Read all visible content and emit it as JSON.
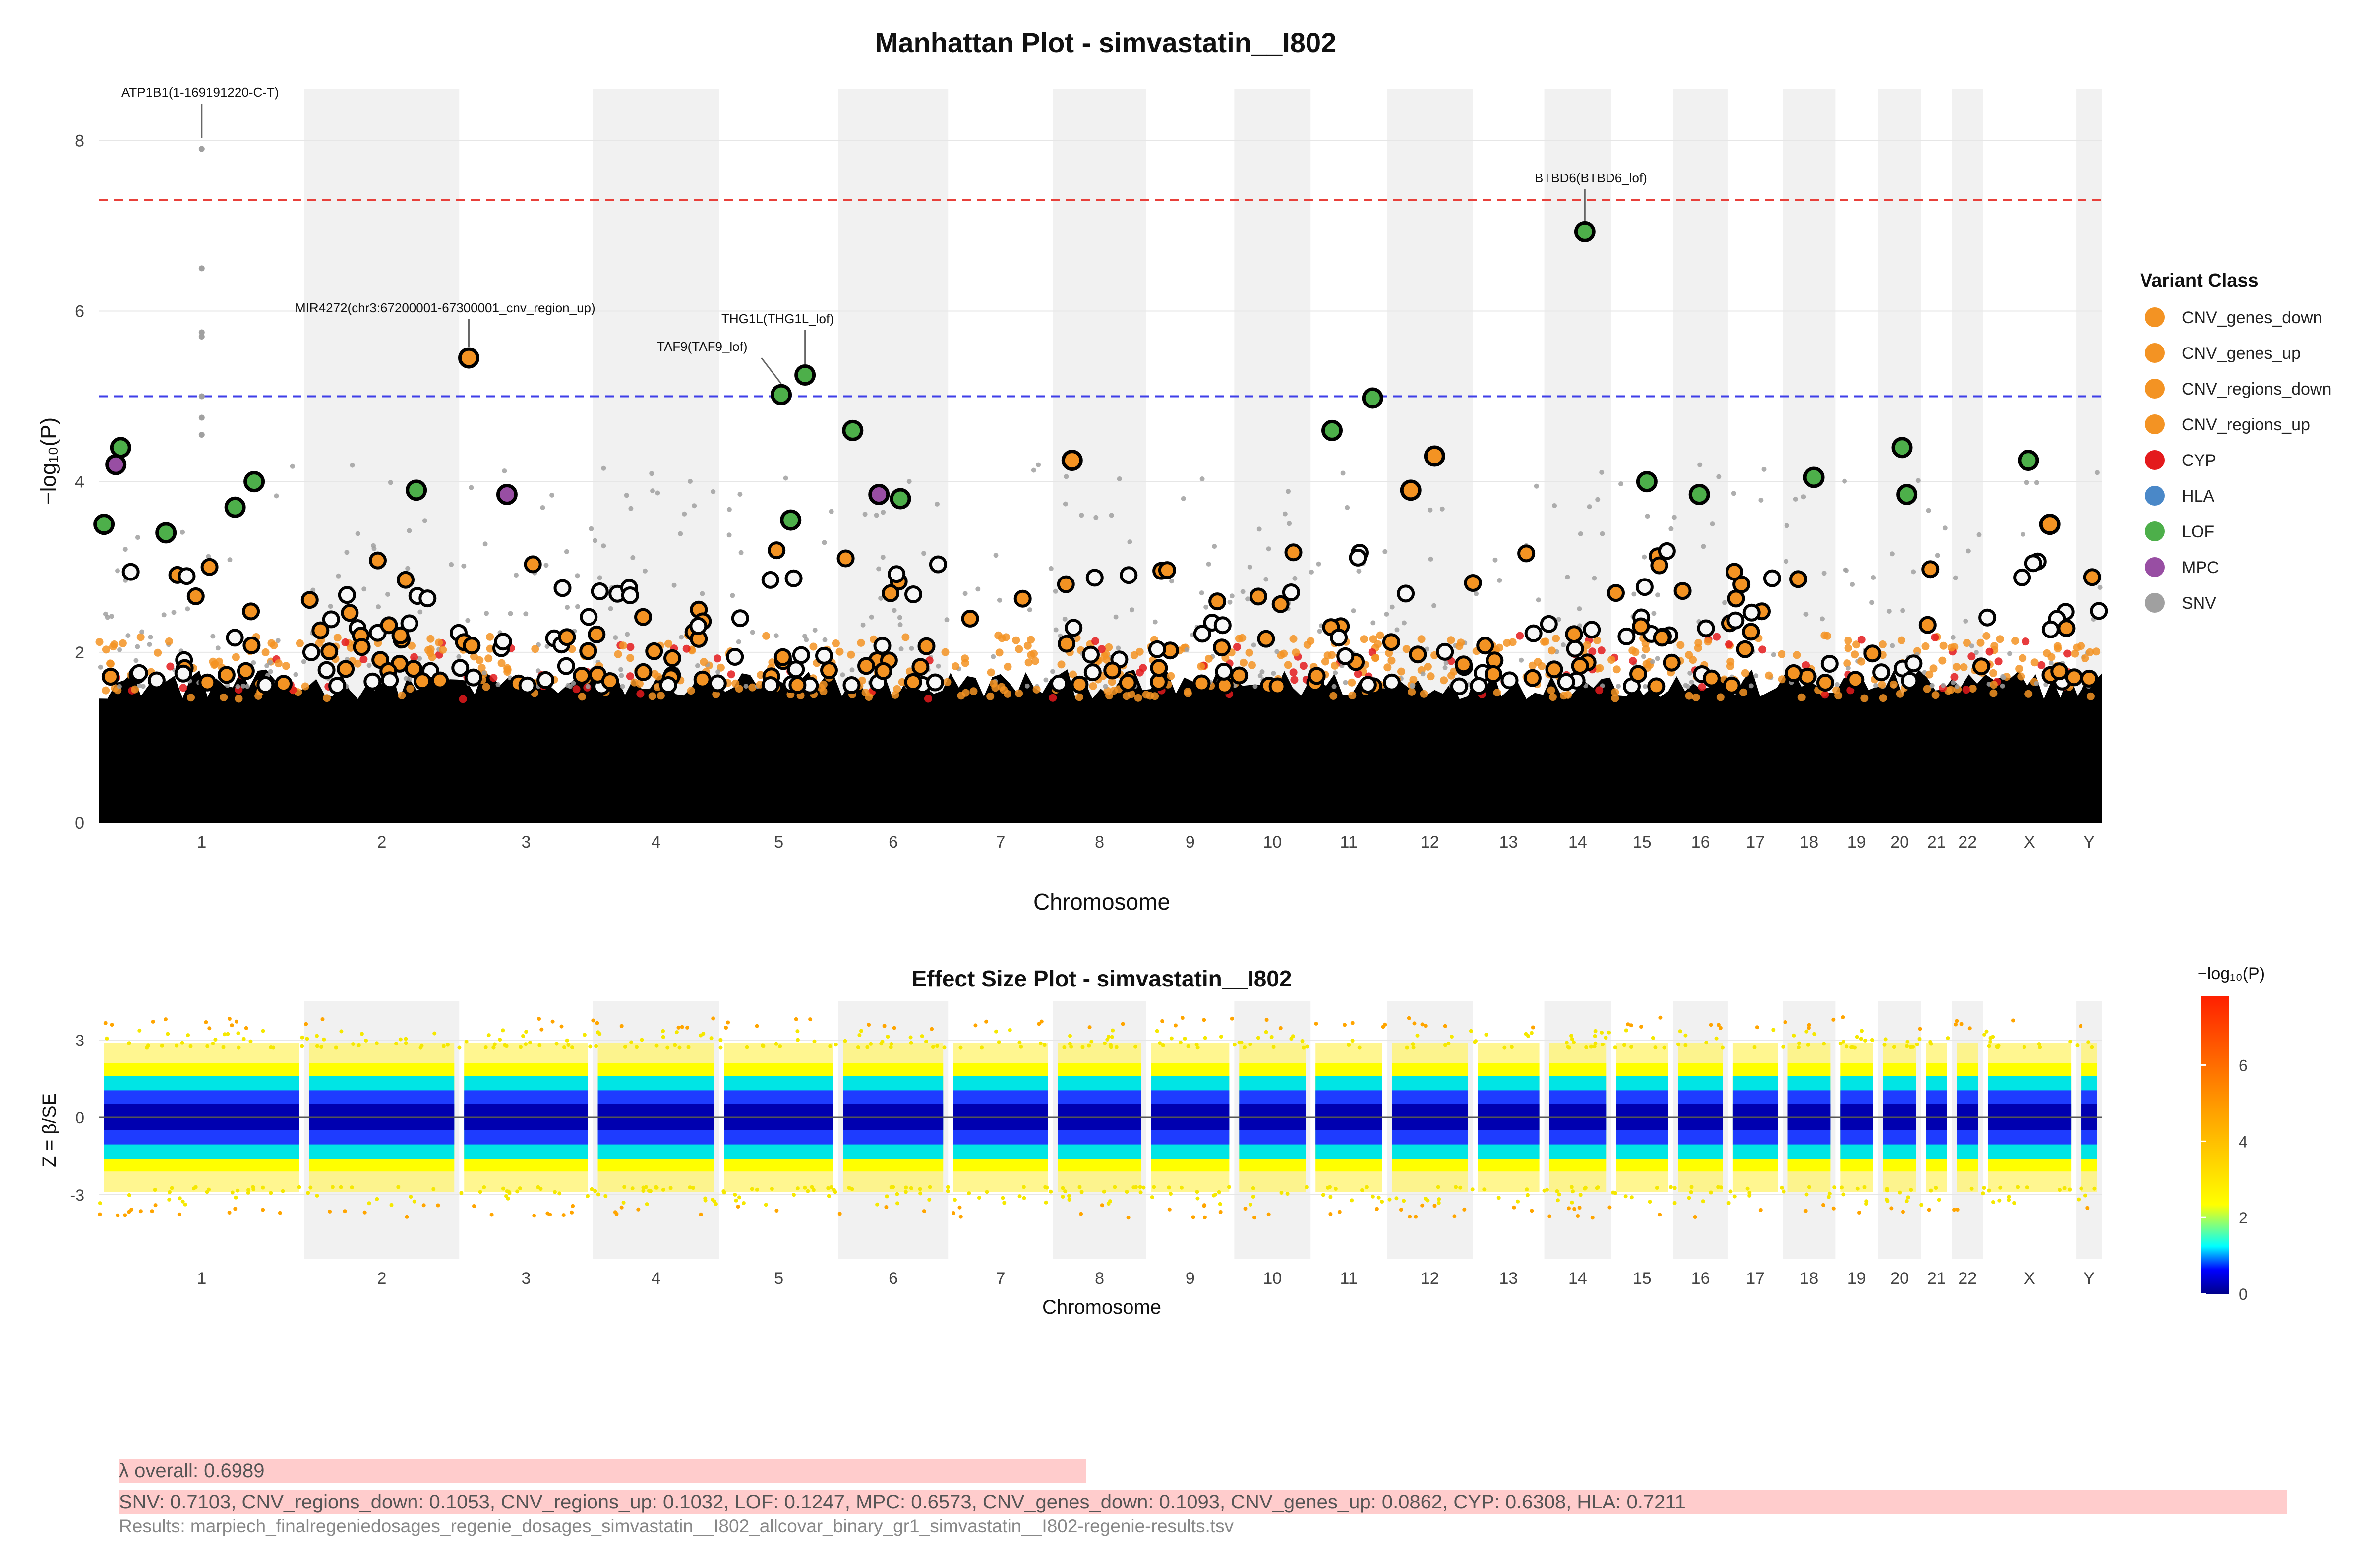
{
  "manhattan": {
    "title": "Manhattan Plot - simvastatin__I802",
    "ylabel": "−log₁₀(P)",
    "xlabel": "Chromosome",
    "legend_title": "Variant Class"
  },
  "effect": {
    "title": "Effect Size Plot - simvastatin__I802",
    "ylabel": "Z = β/SE",
    "xlabel": "Chromosome",
    "colorbar_title": "−log₁₀(P)"
  },
  "footer": {
    "lambda_overall": "λ overall: 0.6989",
    "lambda_by_class": "SNV: 0.7103, CNV_regions_down: 0.1053, CNV_regions_up: 0.1032, LOF: 0.1247, MPC: 0.6573, CNV_genes_down: 0.1093, CNV_genes_up: 0.0862, CYP: 0.6308, HLA: 0.7211",
    "results_file": "Results: marpiech_finalregeniedosages_regenie_dosages_simvastatin__I802_allcovar_binary_gr1_simvastatin__I802-regenie-results.tsv"
  },
  "colors": {
    "CNV": "#f39323",
    "CYP": "#e41a1c",
    "HLA": "#4a88c8",
    "LOF": "#4daf4a",
    "MPC": "#984ea3",
    "SNV": "#a0a0a0",
    "genomewide": "#e8403a",
    "suggestive": "#3e3ee8"
  },
  "chart_data": [
    {
      "type": "scatter",
      "title": "Manhattan Plot - simvastatin__I802",
      "xlabel": "Chromosome",
      "ylabel": "−log₁₀(P)",
      "ylim": [
        0,
        8.6
      ],
      "yticks": [
        0,
        2,
        4,
        6,
        8
      ],
      "chromosomes": [
        "1",
        "2",
        "3",
        "4",
        "5",
        "6",
        "7",
        "8",
        "9",
        "10",
        "11",
        "12",
        "13",
        "14",
        "15",
        "16",
        "17",
        "18",
        "19",
        "20",
        "21",
        "22",
        "X",
        "Y"
      ],
      "chrom_spans": [
        [
          0,
          8.6
        ],
        [
          8.6,
          15.1
        ],
        [
          15.1,
          20.7
        ],
        [
          20.7,
          26.0
        ],
        [
          26.0,
          31.0
        ],
        [
          31.0,
          35.6
        ],
        [
          35.6,
          40.0
        ],
        [
          40.0,
          43.9
        ],
        [
          43.9,
          47.6
        ],
        [
          47.6,
          50.8
        ],
        [
          50.8,
          54.0
        ],
        [
          54.0,
          57.6
        ],
        [
          57.6,
          60.6
        ],
        [
          60.6,
          63.4
        ],
        [
          63.4,
          66.0
        ],
        [
          66.0,
          68.3
        ],
        [
          68.3,
          70.6
        ],
        [
          70.6,
          72.8
        ],
        [
          72.8,
          74.6
        ],
        [
          74.6,
          76.4
        ],
        [
          76.4,
          77.7
        ],
        [
          77.7,
          79.0
        ],
        [
          79.0,
          82.9
        ],
        [
          82.9,
          84.0
        ]
      ],
      "significance_lines": [
        {
          "value": 7.3,
          "color": "#e8403a",
          "style": "dashed"
        },
        {
          "value": 5.0,
          "color": "#3e3ee8",
          "style": "dashed"
        }
      ],
      "legend_placement": "right",
      "series": [
        {
          "name": "CNV_genes_down",
          "color": "#f39323"
        },
        {
          "name": "CNV_genes_up",
          "color": "#f39323"
        },
        {
          "name": "CNV_regions_down",
          "color": "#f39323"
        },
        {
          "name": "CNV_regions_up",
          "color": "#f39323"
        },
        {
          "name": "CYP",
          "color": "#e41a1c"
        },
        {
          "name": "HLA",
          "color": "#4a88c8"
        },
        {
          "name": "LOF",
          "color": "#4daf4a"
        },
        {
          "name": "MPC",
          "color": "#984ea3"
        },
        {
          "name": "SNV",
          "color": "#a0a0a0"
        }
      ],
      "annotations": [
        {
          "label": "ATP1B1(1-169191220-C-T)",
          "chrom": "1",
          "y": 7.9
        },
        {
          "label": "MIR4272(chr3:67200001-67300001_cnv_region_up)",
          "chrom": "3",
          "y": 5.45
        },
        {
          "label": "TAF9(TAF9_lof)",
          "chrom": "5",
          "y": 5.02
        },
        {
          "label": "THG1L(THG1L_lof)",
          "chrom": "5",
          "y": 5.25
        },
        {
          "label": "BTBD6(BTBD6_lof)",
          "chrom": "14",
          "y": 6.93
        }
      ],
      "top_hits": [
        {
          "chrom": "1",
          "x": 0.2,
          "y": 3.5,
          "cls": "LOF"
        },
        {
          "chrom": "1",
          "x": 0.9,
          "y": 4.4,
          "cls": "LOF"
        },
        {
          "chrom": "1",
          "x": 0.7,
          "y": 4.2,
          "cls": "MPC"
        },
        {
          "chrom": "1",
          "x": 2.8,
          "y": 3.4,
          "cls": "LOF"
        },
        {
          "chrom": "1",
          "x": 5.7,
          "y": 3.7,
          "cls": "LOF"
        },
        {
          "chrom": "1",
          "x": 6.5,
          "y": 4.0,
          "cls": "LOF"
        },
        {
          "chrom": "2",
          "x": 13.3,
          "y": 3.9,
          "cls": "LOF"
        },
        {
          "chrom": "3",
          "x": 15.5,
          "y": 5.45,
          "cls": "CNV_regions_up"
        },
        {
          "chrom": "3",
          "x": 17.1,
          "y": 3.85,
          "cls": "MPC"
        },
        {
          "chrom": "5",
          "x": 28.6,
          "y": 5.02,
          "cls": "LOF"
        },
        {
          "chrom": "5",
          "x": 29.6,
          "y": 5.25,
          "cls": "LOF"
        },
        {
          "chrom": "5",
          "x": 29.0,
          "y": 3.55,
          "cls": "LOF"
        },
        {
          "chrom": "6",
          "x": 31.6,
          "y": 4.6,
          "cls": "LOF"
        },
        {
          "chrom": "6",
          "x": 32.7,
          "y": 3.85,
          "cls": "MPC"
        },
        {
          "chrom": "6",
          "x": 33.6,
          "y": 3.8,
          "cls": "LOF"
        },
        {
          "chrom": "8",
          "x": 40.8,
          "y": 4.25,
          "cls": "CNV_regions_up"
        },
        {
          "chrom": "11",
          "x": 51.7,
          "y": 4.6,
          "cls": "LOF"
        },
        {
          "chrom": "11",
          "x": 53.4,
          "y": 4.98,
          "cls": "LOF"
        },
        {
          "chrom": "12",
          "x": 55.0,
          "y": 3.9,
          "cls": "CNV_genes_up"
        },
        {
          "chrom": "12",
          "x": 56.0,
          "y": 4.3,
          "cls": "CNV_genes_up"
        },
        {
          "chrom": "14",
          "x": 62.3,
          "y": 6.93,
          "cls": "LOF"
        },
        {
          "chrom": "15",
          "x": 64.9,
          "y": 4.0,
          "cls": "LOF"
        },
        {
          "chrom": "16",
          "x": 67.1,
          "y": 3.85,
          "cls": "LOF"
        },
        {
          "chrom": "18",
          "x": 71.9,
          "y": 4.05,
          "cls": "LOF"
        },
        {
          "chrom": "20",
          "x": 75.6,
          "y": 4.4,
          "cls": "LOF"
        },
        {
          "chrom": "20",
          "x": 75.8,
          "y": 3.85,
          "cls": "LOF"
        },
        {
          "chrom": "X",
          "x": 80.9,
          "y": 4.25,
          "cls": "LOF"
        },
        {
          "chrom": "X",
          "x": 81.8,
          "y": 3.5,
          "cls": "CNV_genes_up"
        }
      ]
    },
    {
      "type": "scatter",
      "title": "Effect Size Plot - simvastatin__I802",
      "xlabel": "Chromosome",
      "ylabel": "Z = β/SE",
      "ylim": [
        -5.5,
        4.5
      ],
      "yticks": [
        -3,
        0,
        3
      ],
      "color_by": "−log₁₀(P)",
      "colorbar": {
        "range": [
          0,
          7.8
        ],
        "ticks": [
          0,
          2,
          4,
          6
        ],
        "colors": [
          "#00008b",
          "#0000ff",
          "#00ffff",
          "#ffff00",
          "#ffa500",
          "#ff0000"
        ]
      }
    }
  ]
}
